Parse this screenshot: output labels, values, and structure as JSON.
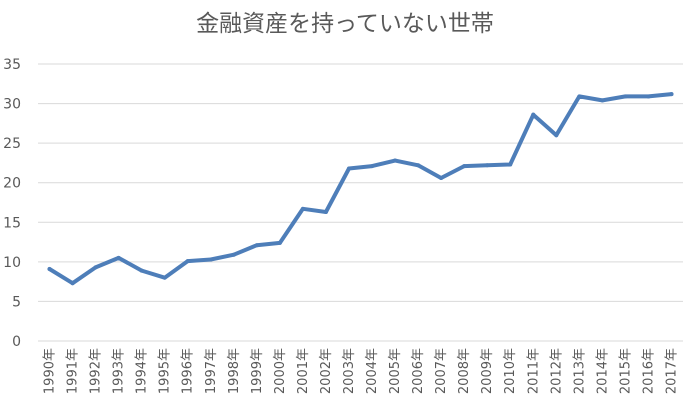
{
  "chart_data": {
    "type": "line",
    "title": "金融資産を持っていない世帯",
    "xlabel": "",
    "ylabel": "",
    "categories": [
      "1990年",
      "1991年",
      "1992年",
      "1993年",
      "1994年",
      "1995年",
      "1996年",
      "1997年",
      "1998年",
      "1999年",
      "2000年",
      "2001年",
      "2002年",
      "2003年",
      "2004年",
      "2005年",
      "2006年",
      "2007年",
      "2008年",
      "2009年",
      "2010年",
      "2011年",
      "2012年",
      "2013年",
      "2014年",
      "2015年",
      "2016年",
      "2017年"
    ],
    "series": [
      {
        "values": [
          9.1,
          7.3,
          9.3,
          10.5,
          8.9,
          8.0,
          10.1,
          10.3,
          10.9,
          12.1,
          12.4,
          16.7,
          16.3,
          21.8,
          22.1,
          22.8,
          22.2,
          20.6,
          22.1,
          22.2,
          22.3,
          28.6,
          26.0,
          30.9,
          30.4,
          30.9,
          30.9,
          31.2
        ],
        "color": "#4E7EB9"
      }
    ],
    "ylim": [
      0,
      35
    ],
    "yticks": [
      0,
      5,
      10,
      15,
      20,
      25,
      30,
      35
    ],
    "grid": true,
    "legend": "none"
  }
}
